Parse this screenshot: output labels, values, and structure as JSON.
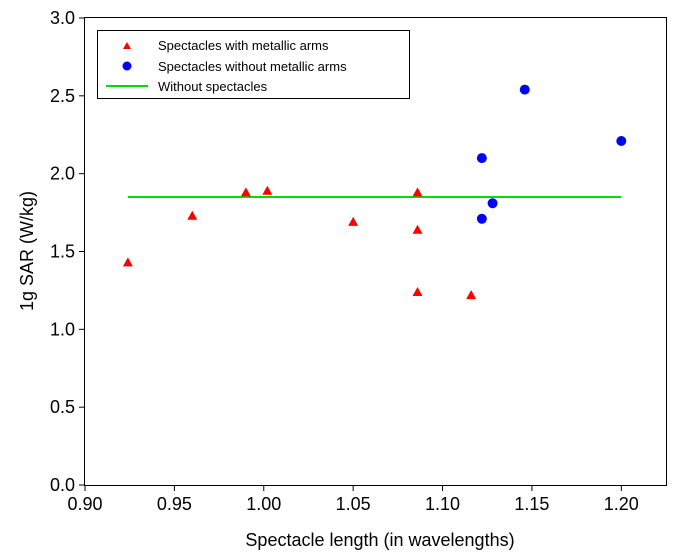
{
  "chart_data": {
    "type": "scatter",
    "title": "",
    "xlabel": "Spectacle length (in wavelengths)",
    "ylabel": "1g SAR (W/kg)",
    "xlim": [
      0.9,
      1.225
    ],
    "ylim": [
      0.0,
      3.0
    ],
    "xticks": [
      "0.90",
      "0.95",
      "1.00",
      "1.05",
      "1.10",
      "1.15",
      "1.20"
    ],
    "yticks": [
      "0.0",
      "0.5",
      "1.0",
      "1.5",
      "2.0",
      "2.5",
      "3.0"
    ],
    "grid": false,
    "legend_position": "top-left",
    "series": [
      {
        "name": "Spectacles with metallic arms",
        "marker": "triangle",
        "color": "#ff0000",
        "points": [
          {
            "x": 0.924,
            "y": 1.43
          },
          {
            "x": 0.96,
            "y": 1.73
          },
          {
            "x": 0.99,
            "y": 1.88
          },
          {
            "x": 1.002,
            "y": 1.89
          },
          {
            "x": 1.05,
            "y": 1.69
          },
          {
            "x": 1.086,
            "y": 1.88
          },
          {
            "x": 1.086,
            "y": 1.64
          },
          {
            "x": 1.086,
            "y": 1.24
          },
          {
            "x": 1.116,
            "y": 1.22
          }
        ]
      },
      {
        "name": "Spectacles without metallic arms",
        "marker": "circle",
        "color": "#0000ff",
        "points": [
          {
            "x": 1.122,
            "y": 2.1
          },
          {
            "x": 1.122,
            "y": 1.71
          },
          {
            "x": 1.128,
            "y": 1.81
          },
          {
            "x": 1.146,
            "y": 2.54
          },
          {
            "x": 1.2,
            "y": 2.21
          }
        ]
      },
      {
        "name": "Without spectacles",
        "marker": "line",
        "color": "#00dd00",
        "x_range": [
          0.924,
          1.2
        ],
        "y": 1.85
      }
    ]
  }
}
